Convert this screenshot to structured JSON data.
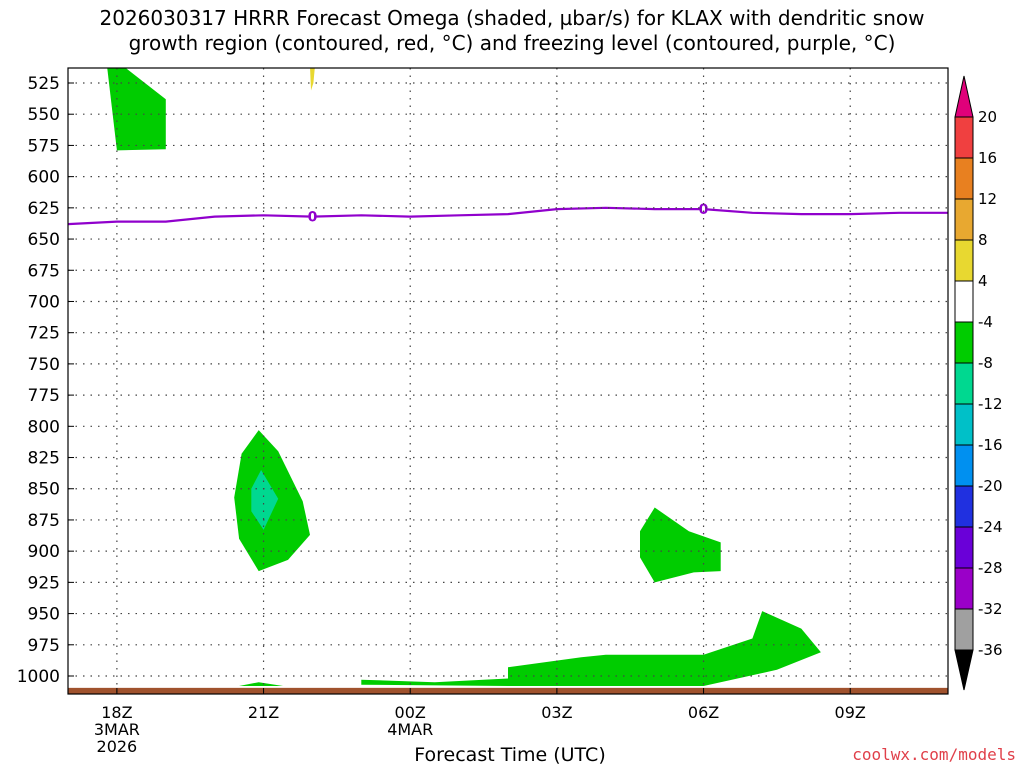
{
  "title": {
    "line1": "2026030317 HRRR Forecast Omega (shaded, µbar/s) for KLAX with dendritic snow",
    "line2": "growth region (contoured, red, °C) and freezing level (contoured, purple, °C)"
  },
  "xlabel": "Forecast Time (UTC)",
  "credit": "coolwx.com/models",
  "chart_data": {
    "type": "heatmap",
    "title": "2026030317 HRRR Forecast Omega (shaded, µbar/s) for KLAX with dendritic snow growth region (contoured, red, °C) and freezing level (contoured, purple, °C)",
    "xlabel": "Forecast Time (UTC)",
    "ylabel": "",
    "y_axis": {
      "scale": "pressure (inverted, hPa)",
      "ticks": [
        525,
        550,
        575,
        600,
        625,
        650,
        675,
        700,
        725,
        750,
        775,
        800,
        825,
        850,
        875,
        900,
        925,
        950,
        975,
        1000
      ],
      "range": [
        1010,
        515
      ]
    },
    "x_axis": {
      "unit": "hours from 2026-03-03 18Z",
      "range": [
        -1,
        17
      ],
      "ticks": [
        {
          "x": 0,
          "lines": [
            "18Z",
            "3MAR",
            "2026"
          ]
        },
        {
          "x": 3,
          "lines": [
            "21Z"
          ]
        },
        {
          "x": 6,
          "lines": [
            "00Z",
            "4MAR"
          ]
        },
        {
          "x": 9,
          "lines": [
            "03Z"
          ]
        },
        {
          "x": 12,
          "lines": [
            "06Z"
          ]
        },
        {
          "x": 15,
          "lines": [
            "09Z"
          ]
        }
      ]
    },
    "grid": true,
    "colorbar": {
      "placement": "right",
      "levels": [
        -36,
        -32,
        -28,
        -24,
        -20,
        -16,
        -12,
        -8,
        -4,
        4,
        8,
        12,
        16,
        20
      ],
      "colors": [
        "#a0a0a0",
        "#9a00c8",
        "#6a00d8",
        "#2030e0",
        "#0090f0",
        "#00c0c8",
        "#00d890",
        "#00cc00",
        "#ffffff",
        "#e8d830",
        "#e8a830",
        "#e88020",
        "#f04040",
        "#e0007a"
      ],
      "under_color": "#000000",
      "over_color": "#e0007a"
    },
    "omega_shaded_regions": [
      {
        "range": [
          -8,
          -4
        ],
        "color": "#00cc00",
        "points": [
          [
            -0.2,
            512
          ],
          [
            0.15,
            512
          ],
          [
            1.0,
            538
          ],
          [
            1.0,
            578
          ],
          [
            0.0,
            579
          ]
        ]
      },
      {
        "range": [
          4,
          8
        ],
        "color": "#e8d830",
        "points": [
          [
            3.95,
            512
          ],
          [
            4.05,
            512
          ],
          [
            4.02,
            525
          ],
          [
            3.97,
            531
          ]
        ]
      },
      {
        "range": [
          -8,
          -4
        ],
        "color": "#00cc00",
        "points": [
          [
            2.9,
            803
          ],
          [
            3.3,
            820
          ],
          [
            3.8,
            860
          ],
          [
            3.95,
            887
          ],
          [
            3.5,
            907
          ],
          [
            2.9,
            916
          ],
          [
            2.5,
            890
          ],
          [
            2.4,
            857
          ],
          [
            2.55,
            822
          ]
        ]
      },
      {
        "range": [
          -12,
          -8
        ],
        "color": "#00d890",
        "points": [
          [
            2.95,
            835
          ],
          [
            3.3,
            858
          ],
          [
            3.0,
            883
          ],
          [
            2.75,
            868
          ],
          [
            2.75,
            850
          ]
        ]
      },
      {
        "range": [
          -8,
          -4
        ],
        "color": "#00cc00",
        "points": [
          [
            11.0,
            865
          ],
          [
            11.7,
            884
          ],
          [
            12.35,
            893
          ],
          [
            12.35,
            916
          ],
          [
            11.8,
            917
          ],
          [
            11.0,
            925
          ],
          [
            10.7,
            905
          ],
          [
            10.7,
            884
          ]
        ]
      },
      {
        "range": [
          -8,
          -4
        ],
        "color": "#00cc00",
        "points": [
          [
            2.5,
            1008
          ],
          [
            2.9,
            1005
          ],
          [
            3.4,
            1008
          ]
        ]
      },
      {
        "range": [
          -8,
          -4
        ],
        "color": "#00cc00",
        "points": [
          [
            5.0,
            1003
          ],
          [
            6.5,
            1005
          ],
          [
            8.0,
            1002
          ],
          [
            8.0,
            993
          ],
          [
            9.5,
            985
          ],
          [
            10.0,
            983
          ],
          [
            12.0,
            983
          ],
          [
            13.0,
            970
          ],
          [
            13.2,
            948
          ],
          [
            14.0,
            962
          ],
          [
            14.4,
            981
          ],
          [
            13.5,
            995
          ],
          [
            12.0,
            1008
          ],
          [
            8.0,
            1008
          ],
          [
            5.0,
            1007
          ]
        ]
      }
    ],
    "freezing_level": {
      "label": "0",
      "color": "#9000cc",
      "x": [
        -1,
        0,
        1,
        2,
        3,
        4,
        5,
        6,
        7,
        8,
        9,
        10,
        11,
        12,
        13,
        14,
        15,
        16,
        17
      ],
      "y": [
        638,
        636,
        636,
        632,
        631,
        632,
        631,
        632,
        631,
        630,
        626,
        625,
        626,
        626,
        629,
        630,
        630,
        629,
        629
      ],
      "label_x": [
        4,
        12
      ]
    },
    "surface": {
      "pressure": 1013,
      "color": "#a0522d"
    }
  }
}
